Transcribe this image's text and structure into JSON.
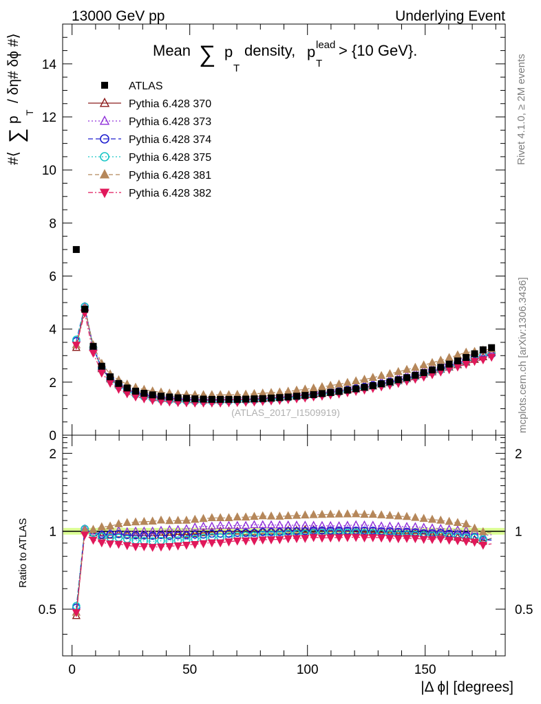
{
  "header": {
    "left": "13000 GeV pp",
    "right": "Underlying Event"
  },
  "side_labels": {
    "rivet": "Rivet 4.1.0, ≥ 2M events",
    "mcplots": "mcplots.cern.ch [arXiv:1306.3436]"
  },
  "chart_data": [
    {
      "type": "scatter",
      "panel": "main",
      "title_parts": {
        "mean": "Mean",
        "sum": "∑",
        "p": "p",
        "sub": "T",
        "density": "density,",
        "lead": "lead",
        "cut": "> {10 GeV}."
      },
      "ylabel_parts": {
        "hash_open": "#⟨",
        "sum": "∑",
        "p": "p",
        "sub": "T",
        "rest": "/ δη# δϕ #⟩"
      },
      "xlim": [
        -4,
        184
      ],
      "ylim": [
        0,
        15.5
      ],
      "yticks": [
        "0",
        "2",
        "4",
        "6",
        "8",
        "10",
        "12",
        "14"
      ],
      "watermark": "(ATLAS_2017_I1509919)",
      "x": [
        1.8,
        5.4,
        9,
        12.6,
        16.2,
        19.8,
        23.4,
        27,
        30.6,
        34.2,
        37.8,
        41.4,
        45,
        48.6,
        52.2,
        55.8,
        59.4,
        63,
        66.6,
        70.2,
        73.8,
        77.4,
        81,
        84.6,
        88.2,
        91.8,
        95.4,
        99,
        102.6,
        106.2,
        109.8,
        113.4,
        117,
        120.6,
        124.2,
        127.8,
        131.4,
        135,
        138.6,
        142.2,
        145.8,
        149.4,
        153,
        156.6,
        160.2,
        163.8,
        167.4,
        171,
        174.6,
        178.2
      ],
      "series": [
        {
          "name": "ATLAS",
          "color": "#000000",
          "marker": "square-filled",
          "values": [
            7.0,
            4.75,
            3.35,
            2.6,
            2.2,
            1.95,
            1.78,
            1.66,
            1.58,
            1.52,
            1.47,
            1.44,
            1.41,
            1.39,
            1.37,
            1.36,
            1.35,
            1.35,
            1.35,
            1.35,
            1.36,
            1.37,
            1.38,
            1.4,
            1.42,
            1.44,
            1.47,
            1.5,
            1.53,
            1.57,
            1.61,
            1.65,
            1.7,
            1.75,
            1.81,
            1.87,
            1.94,
            2.01,
            2.09,
            2.17,
            2.26,
            2.36,
            2.46,
            2.56,
            2.68,
            2.8,
            2.93,
            3.07,
            3.22,
            3.3
          ]
        },
        {
          "name": "Pythia 6.428 370",
          "color": "#8b1a1a",
          "marker": "triangle-up-open",
          "values": [
            3.3,
            4.8,
            3.3,
            2.5,
            2.12,
            1.9,
            1.72,
            1.6,
            1.52,
            1.46,
            1.42,
            1.39,
            1.37,
            1.35,
            1.34,
            1.34,
            1.34,
            1.35,
            1.35,
            1.35,
            1.35,
            1.36,
            1.38,
            1.4,
            1.42,
            1.45,
            1.48,
            1.52,
            1.55,
            1.58,
            1.61,
            1.65,
            1.7,
            1.74,
            1.79,
            1.85,
            1.92,
            1.98,
            2.05,
            2.13,
            2.22,
            2.3,
            2.38,
            2.48,
            2.56,
            2.65,
            2.75,
            2.85,
            2.95,
            3.1
          ]
        },
        {
          "name": "Pythia 6.428 373",
          "color": "#8f2fd9",
          "marker": "triangle-up-open",
          "values": [
            3.4,
            4.85,
            3.35,
            2.55,
            2.18,
            1.96,
            1.77,
            1.66,
            1.58,
            1.52,
            1.48,
            1.46,
            1.43,
            1.42,
            1.42,
            1.42,
            1.41,
            1.42,
            1.42,
            1.42,
            1.43,
            1.45,
            1.46,
            1.48,
            1.5,
            1.52,
            1.55,
            1.58,
            1.61,
            1.65,
            1.69,
            1.73,
            1.79,
            1.85,
            1.91,
            1.97,
            2.03,
            2.1,
            2.18,
            2.26,
            2.35,
            2.44,
            2.53,
            2.62,
            2.73,
            2.83,
            2.95,
            3.06,
            3.1,
            3.2
          ]
        },
        {
          "name": "Pythia 6.428 374",
          "color": "#1e1ecf",
          "marker": "circle-open",
          "values": [
            3.55,
            4.85,
            3.3,
            2.52,
            2.14,
            1.9,
            1.72,
            1.6,
            1.52,
            1.46,
            1.42,
            1.38,
            1.36,
            1.34,
            1.33,
            1.32,
            1.32,
            1.32,
            1.32,
            1.33,
            1.34,
            1.35,
            1.37,
            1.39,
            1.41,
            1.44,
            1.47,
            1.5,
            1.54,
            1.58,
            1.62,
            1.66,
            1.71,
            1.76,
            1.82,
            1.88,
            1.94,
            2.01,
            2.08,
            2.16,
            2.24,
            2.32,
            2.42,
            2.52,
            2.62,
            2.72,
            2.82,
            2.92,
            2.98,
            3.05
          ]
        },
        {
          "name": "Pythia 6.428 375",
          "color": "#17c6c6",
          "marker": "circle-open",
          "values": [
            3.6,
            4.85,
            3.3,
            2.48,
            2.08,
            1.84,
            1.66,
            1.53,
            1.45,
            1.39,
            1.35,
            1.32,
            1.3,
            1.29,
            1.28,
            1.28,
            1.28,
            1.28,
            1.29,
            1.3,
            1.31,
            1.32,
            1.34,
            1.36,
            1.38,
            1.41,
            1.44,
            1.47,
            1.51,
            1.55,
            1.59,
            1.63,
            1.68,
            1.73,
            1.78,
            1.84,
            1.9,
            1.96,
            2.03,
            2.11,
            2.19,
            2.28,
            2.37,
            2.46,
            2.56,
            2.66,
            2.77,
            2.9,
            3.0,
            3.08
          ]
        },
        {
          "name": "Pythia 6.428 381",
          "color": "#b5875a",
          "marker": "triangle-up-filled",
          "values": [
            3.4,
            4.8,
            3.4,
            2.7,
            2.3,
            2.08,
            1.92,
            1.8,
            1.72,
            1.66,
            1.62,
            1.58,
            1.55,
            1.53,
            1.52,
            1.52,
            1.52,
            1.52,
            1.52,
            1.53,
            1.54,
            1.56,
            1.58,
            1.6,
            1.62,
            1.65,
            1.69,
            1.73,
            1.77,
            1.82,
            1.87,
            1.92,
            1.98,
            2.04,
            2.1,
            2.17,
            2.24,
            2.31,
            2.39,
            2.47,
            2.55,
            2.64,
            2.73,
            2.82,
            2.92,
            3.02,
            3.12,
            3.15,
            3.2,
            3.25
          ]
        },
        {
          "name": "Pythia 6.428 382",
          "color": "#e0185a",
          "marker": "triangle-down-filled",
          "values": [
            3.4,
            4.6,
            3.1,
            2.35,
            1.97,
            1.74,
            1.57,
            1.45,
            1.38,
            1.32,
            1.28,
            1.26,
            1.24,
            1.23,
            1.22,
            1.22,
            1.22,
            1.22,
            1.23,
            1.24,
            1.25,
            1.26,
            1.28,
            1.3,
            1.32,
            1.35,
            1.38,
            1.41,
            1.45,
            1.48,
            1.52,
            1.56,
            1.61,
            1.66,
            1.71,
            1.77,
            1.83,
            1.89,
            1.96,
            2.04,
            2.12,
            2.2,
            2.29,
            2.39,
            2.48,
            2.58,
            2.68,
            2.79,
            2.85,
            2.95
          ]
        }
      ]
    },
    {
      "type": "scatter",
      "panel": "ratio",
      "ylabel": "Ratio to ATLAS",
      "xlabel": "|Δ ϕ| [degrees]",
      "xlim": [
        -4,
        184
      ],
      "ylim": [
        0.33,
        2.35
      ],
      "yticks": [
        "0.5",
        "1",
        "2"
      ],
      "xticks": [
        "0",
        "50",
        "100",
        "150"
      ],
      "reference": 1.0,
      "band_color": "#ccff66"
    }
  ]
}
